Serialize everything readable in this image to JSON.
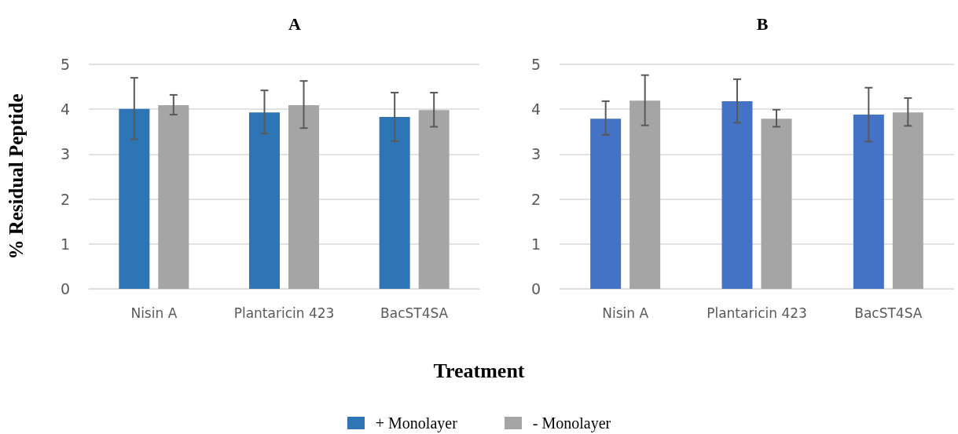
{
  "chart_data": [
    {
      "type": "bar",
      "title": "A",
      "ylabel": "% Residual Peptide",
      "xlabel": "Treatment",
      "categories": [
        "Nisin A",
        "Plantaricin 423",
        "BacST4SA"
      ],
      "series": [
        {
          "name": "+ Monolayer",
          "color": "#2e75b6",
          "values": [
            4.01,
            3.93,
            3.83
          ],
          "errors": [
            [
              3.33,
              4.7
            ],
            [
              3.46,
              4.42
            ],
            [
              3.29,
              4.37
            ]
          ]
        },
        {
          "name": "- Monolayer",
          "color": "#a5a5a5",
          "values": [
            4.09,
            4.09,
            3.98
          ],
          "errors": [
            [
              3.88,
              4.32
            ],
            [
              3.58,
              4.63
            ],
            [
              3.61,
              4.37
            ]
          ]
        }
      ],
      "ylim": [
        0,
        5
      ],
      "yticks": [
        0,
        1,
        2,
        3,
        4,
        5
      ],
      "grid": "y",
      "legend": "bottom"
    },
    {
      "type": "bar",
      "title": "B",
      "categories": [
        "Nisin A",
        "Plantaricin 423",
        "BacST4SA"
      ],
      "series": [
        {
          "color": "#4472c4",
          "values": [
            3.79,
            4.18,
            3.88
          ],
          "errors": [
            [
              3.43,
              4.18
            ],
            [
              3.7,
              4.67
            ],
            [
              3.28,
              4.48
            ]
          ]
        },
        {
          "color": "#a5a5a5",
          "values": [
            4.19,
            3.79,
            3.93
          ],
          "errors": [
            [
              3.64,
              4.76
            ],
            [
              3.61,
              3.99
            ],
            [
              3.63,
              4.25
            ]
          ]
        }
      ],
      "ylim": [
        0,
        5
      ],
      "yticks": [
        0,
        1,
        2,
        3,
        4,
        5
      ],
      "grid": "y"
    }
  ]
}
